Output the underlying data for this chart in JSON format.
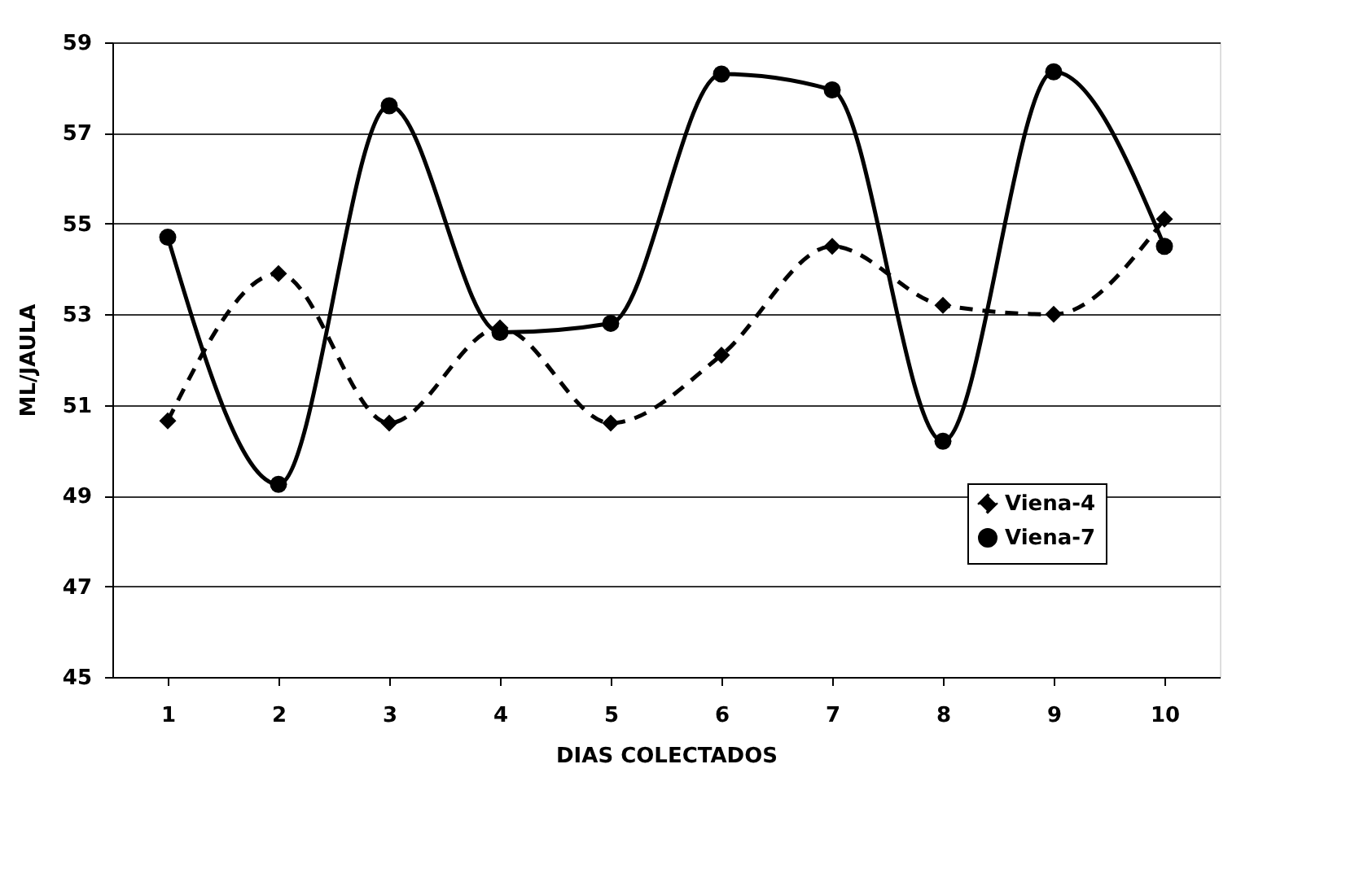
{
  "chart_data": {
    "type": "line",
    "xlabel": "DIAS COLECTADOS",
    "ylabel": "ML/JAULA",
    "categories": [
      "1",
      "2",
      "3",
      "4",
      "5",
      "6",
      "7",
      "8",
      "9",
      "10"
    ],
    "series": [
      {
        "name": "Viena-4",
        "color": "#000000",
        "line_style": "dashed",
        "marker": "diamond",
        "values": [
          50.65,
          53.9,
          50.6,
          52.7,
          50.6,
          52.1,
          54.5,
          53.2,
          53.0,
          55.1
        ]
      },
      {
        "name": "Viena-7",
        "color": "#000000",
        "line_style": "solid",
        "marker": "circle",
        "values": [
          54.7,
          49.25,
          57.6,
          52.6,
          52.8,
          58.3,
          57.95,
          50.2,
          58.35,
          54.5
        ]
      }
    ],
    "ylim": [
      45,
      59
    ],
    "yticks": [
      45,
      47,
      49,
      51,
      53,
      55,
      57,
      59
    ],
    "grid": "y",
    "legend": "bottom right"
  }
}
